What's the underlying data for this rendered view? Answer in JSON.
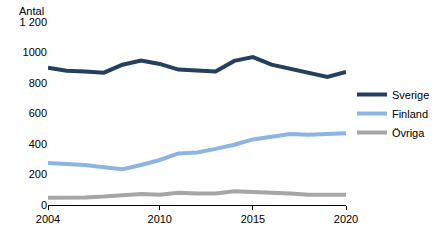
{
  "chart_data": {
    "type": "line",
    "ylabel": "Antal",
    "x": [
      2004,
      2005,
      2006,
      2007,
      2008,
      2009,
      2010,
      2011,
      2012,
      2013,
      2014,
      2015,
      2016,
      2017,
      2018,
      2019,
      2020
    ],
    "series": [
      {
        "name": "Sverige",
        "color": "#243f60",
        "values": [
          900,
          880,
          875,
          868,
          920,
          948,
          925,
          888,
          882,
          875,
          945,
          970,
          920,
          895,
          868,
          840,
          872
        ]
      },
      {
        "name": "Finland",
        "color": "#8db4e2",
        "values": [
          275,
          270,
          262,
          248,
          235,
          262,
          295,
          338,
          345,
          368,
          395,
          430,
          450,
          465,
          460,
          465,
          470
        ]
      },
      {
        "name": "Övriga",
        "color": "#a6a6a6",
        "values": [
          48,
          48,
          50,
          55,
          62,
          72,
          68,
          80,
          75,
          75,
          90,
          82,
          80,
          75,
          68,
          68,
          68
        ]
      }
    ],
    "xlim": [
      2004,
      2020
    ],
    "xticks": [
      2004,
      2010,
      2015,
      2020
    ],
    "ylim": [
      0,
      1200
    ],
    "yticks": [
      0,
      200,
      400,
      600,
      800,
      1000,
      {
        "value": 1200,
        "label": "1 200"
      }
    ],
    "grid": false,
    "legend": "right"
  }
}
